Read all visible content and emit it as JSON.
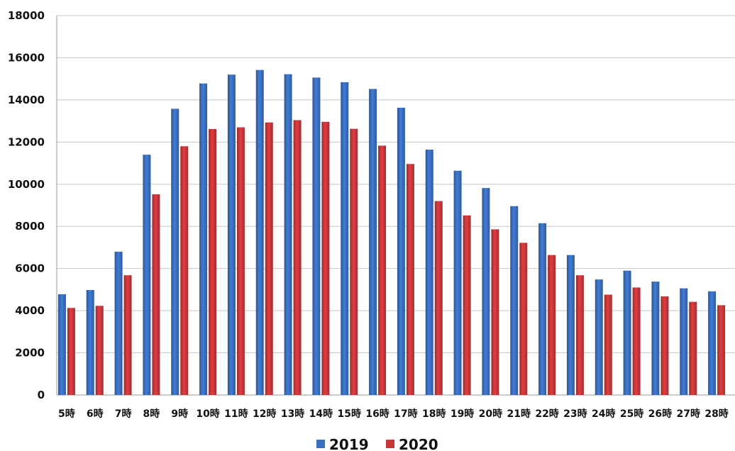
{
  "chart_data": {
    "type": "bar",
    "categories": [
      "5時",
      "6時",
      "7時",
      "8時",
      "9時",
      "10時",
      "11時",
      "12時",
      "13時",
      "14時",
      "15時",
      "16時",
      "17時",
      "18時",
      "19時",
      "20時",
      "21時",
      "22時",
      "23時",
      "24時",
      "25時",
      "26時",
      "27時",
      "28時"
    ],
    "series": [
      {
        "name": "2019",
        "color": "#3a6fbf",
        "values": [
          4780,
          4980,
          6800,
          11400,
          13580,
          14780,
          15200,
          15420,
          15220,
          15060,
          14840,
          14520,
          13630,
          11640,
          10640,
          9820,
          8960,
          8150,
          6640,
          5480,
          5900,
          5380,
          5060,
          4920
        ]
      },
      {
        "name": "2020",
        "color": "#c8373a",
        "values": [
          4130,
          4230,
          5680,
          9520,
          11800,
          12620,
          12700,
          12930,
          13040,
          12960,
          12630,
          11830,
          10960,
          9200,
          8520,
          7860,
          7220,
          6640,
          5680,
          4760,
          5100,
          4680,
          4420,
          4260
        ]
      }
    ],
    "ylim": [
      0,
      18000
    ],
    "yticks": [
      0,
      2000,
      4000,
      6000,
      8000,
      10000,
      12000,
      14000,
      16000,
      18000
    ],
    "grid": true,
    "legend": "bottom-center",
    "title": "",
    "xlabel": "",
    "ylabel": ""
  }
}
